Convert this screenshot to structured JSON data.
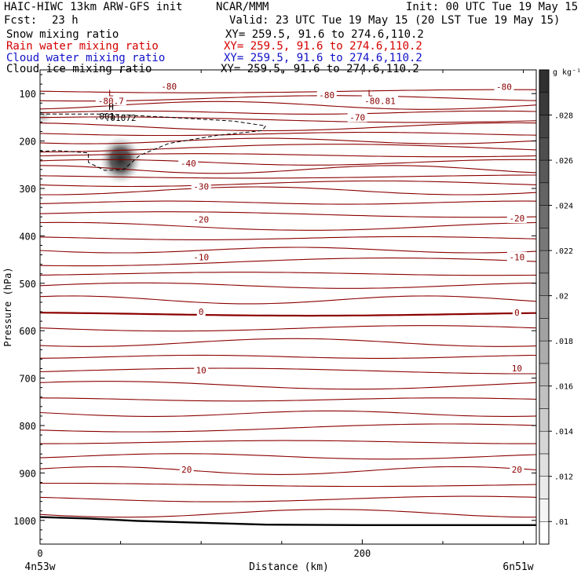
{
  "header": {
    "title": "HAIC-HIWC 13km ARW-GFS init",
    "org": "NCAR/MMM",
    "init": "Init: 00 UTC Tue 19 May 15",
    "fcst_label": "Fcst:",
    "fcst_value": "23 h",
    "valid": "Valid: 23 UTC Tue 19 May 15 (20 LST Tue 19 May 15)"
  },
  "fields": [
    {
      "label": "Snow mixing ratio",
      "xy": "XY= 259.5, 91.6 to 274.6,110.2",
      "color": "#000000"
    },
    {
      "label": "Rain water mixing ratio",
      "xy": "XY= 259.5, 91.6 to 274.6,110.2",
      "color": "#d40000"
    },
    {
      "label": "Cloud water mixing ratio",
      "xy": "XY= 259.5, 91.6 to 274.6,110.2",
      "color": "#1010c8"
    },
    {
      "label": "Cloud ice mixing ratio",
      "xy": "XY= 259.5, 91.6 to 274.6,110.2",
      "color": "#000000"
    }
  ],
  "chart_data": {
    "type": "heatmap",
    "xlabel": "Distance (km)",
    "ylabel": "Pressure (hPa)",
    "x_start_label": "4n53w",
    "x_end_label": "6n51w",
    "xlim": [
      0,
      308
    ],
    "ylim": [
      1050,
      50
    ],
    "x_ticks": [
      0,
      200
    ],
    "y_ticks": [
      100,
      200,
      300,
      400,
      500,
      600,
      700,
      800,
      900,
      1000
    ],
    "colorbar": {
      "unit": "g kg⁻¹",
      "ticks": [
        ".01",
        ".012",
        ".014",
        ".016",
        ".018",
        ".02",
        ".022",
        ".024",
        ".026",
        ".028"
      ],
      "tick_values": [
        0.01,
        0.012,
        0.014,
        0.016,
        0.018,
        0.02,
        0.022,
        0.024,
        0.026,
        0.028
      ],
      "max": 0.03
    },
    "temperature_contours": {
      "color": "#8b0000",
      "interval": 5,
      "labels": [
        {
          "text": "-80.7",
          "x": 44,
          "p": 115
        },
        {
          "text": "-80",
          "x": 80,
          "p": 85
        },
        {
          "text": "-80",
          "x": 178,
          "p": 103
        },
        {
          "text": "-80.81",
          "x": 211,
          "p": 115
        },
        {
          "text": "-80",
          "x": 288,
          "p": 86
        },
        {
          "text": "-70",
          "x": 197,
          "p": 150
        },
        {
          "text": "-40",
          "x": 92,
          "p": 247
        },
        {
          "text": "-30",
          "x": 100,
          "p": 296
        },
        {
          "text": "-20",
          "x": 100,
          "p": 365
        },
        {
          "text": "-20",
          "x": 296,
          "p": 363
        },
        {
          "text": "-10",
          "x": 100,
          "p": 445
        },
        {
          "text": "-10",
          "x": 296,
          "p": 445
        },
        {
          "text": "0",
          "x": 100,
          "p": 560
        },
        {
          "text": "0",
          "x": 296,
          "p": 562
        },
        {
          "text": "10",
          "x": 100,
          "p": 683
        },
        {
          "text": "10",
          "x": 296,
          "p": 679
        },
        {
          "text": "20",
          "x": 91,
          "p": 893
        },
        {
          "text": "20",
          "x": 296,
          "p": 893
        }
      ],
      "extrema": [
        {
          "text": "L",
          "x": 44,
          "p": 99
        },
        {
          "text": "L",
          "x": 205,
          "p": 99
        }
      ]
    },
    "cloud_ice": {
      "max_marker": "H",
      "max_value": ".01072",
      "max_x": 50,
      "max_p": 240,
      "contour_label": ".001",
      "contour_label_x": 40,
      "contour_label_p": 148
    },
    "surface_pressure": [
      {
        "x": 0,
        "p": 993
      },
      {
        "x": 30,
        "p": 996
      },
      {
        "x": 60,
        "p": 1001
      },
      {
        "x": 100,
        "p": 1005
      },
      {
        "x": 140,
        "p": 1009
      },
      {
        "x": 200,
        "p": 1010
      },
      {
        "x": 260,
        "p": 1010
      },
      {
        "x": 308,
        "p": 1010
      }
    ]
  }
}
